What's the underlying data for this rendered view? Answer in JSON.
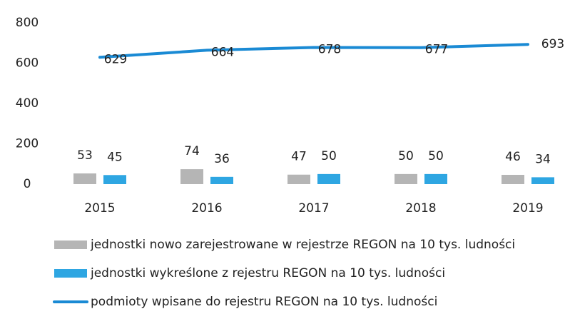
{
  "chart_data": {
    "type": "bar",
    "categories": [
      "2015",
      "2016",
      "2017",
      "2018",
      "2019"
    ],
    "series": [
      {
        "name": "jednostki nowo zarejestrowane w rejestrze REGON na 10 tys. ludności",
        "color": "#b5b5b5",
        "type": "bar",
        "values": [
          53,
          74,
          47,
          50,
          46
        ]
      },
      {
        "name": "jednostki wykreślone z rejestru REGON na 10 tys. ludności",
        "color": "#2ea6e2",
        "type": "bar",
        "values": [
          45,
          36,
          50,
          50,
          34
        ]
      },
      {
        "name": "podmioty wpisane do rejestru REGON na 10 tys. ludności",
        "color": "#1a8ad4",
        "type": "line",
        "values": [
          629,
          664,
          678,
          677,
          693
        ]
      }
    ],
    "ylim": [
      0,
      800
    ],
    "yticks": [
      0,
      200,
      400,
      600,
      800
    ],
    "grid": false
  }
}
